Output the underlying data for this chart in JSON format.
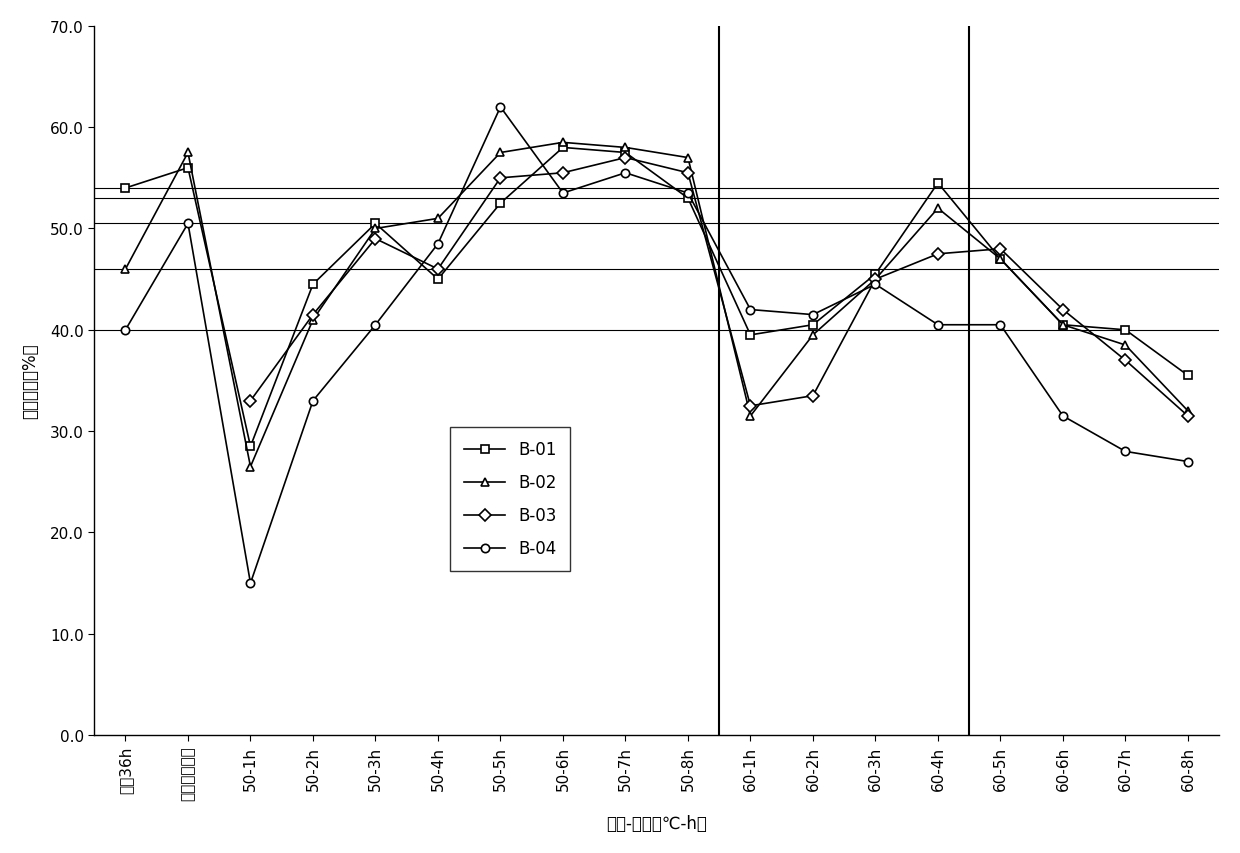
{
  "x_labels": [
    "曝晒36h",
    "室内自然晾干",
    "50-1h",
    "50-2h",
    "50-3h",
    "50-4h",
    "50-5h",
    "50-6h",
    "50-7h",
    "50-8h",
    "60-1h",
    "60-2h",
    "60-3h",
    "60-4h",
    "60-5h",
    "60-6h",
    "60-7h",
    "60-8h"
  ],
  "B01": [
    54.0,
    56.0,
    28.5,
    44.5,
    50.5,
    45.0,
    52.5,
    58.0,
    57.5,
    53.0,
    39.5,
    40.5,
    45.5,
    54.5,
    47.0,
    40.5,
    40.0,
    35.5
  ],
  "B02": [
    46.0,
    57.5,
    26.5,
    41.0,
    50.0,
    51.0,
    57.5,
    58.5,
    58.0,
    57.0,
    31.5,
    39.5,
    45.0,
    52.0,
    47.0,
    40.5,
    38.5,
    32.0
  ],
  "B03": [
    null,
    null,
    33.0,
    41.5,
    49.0,
    46.0,
    55.0,
    55.5,
    57.0,
    55.5,
    32.5,
    33.5,
    45.0,
    47.5,
    48.0,
    42.0,
    37.0,
    31.5
  ],
  "B04": [
    40.0,
    50.5,
    15.0,
    33.0,
    40.5,
    48.5,
    62.0,
    53.5,
    55.5,
    53.5,
    42.0,
    41.5,
    44.5,
    40.5,
    40.5,
    31.5,
    28.0,
    27.0
  ],
  "hlines": [
    54.0,
    53.0,
    50.5,
    46.0,
    40.0
  ],
  "vlines_idx": [
    9.5,
    13.5
  ],
  "ylabel": "整精米率（%）",
  "xlabel": "温度-时间（℃-h）",
  "yticks": [
    0.0,
    10.0,
    20.0,
    30.0,
    40.0,
    50.0,
    60.0,
    70.0
  ],
  "ylim": [
    0.0,
    70.0
  ],
  "legend_labels": [
    "B-01",
    "B-02",
    "B-03",
    "B-04"
  ],
  "background_color": "#ffffff"
}
